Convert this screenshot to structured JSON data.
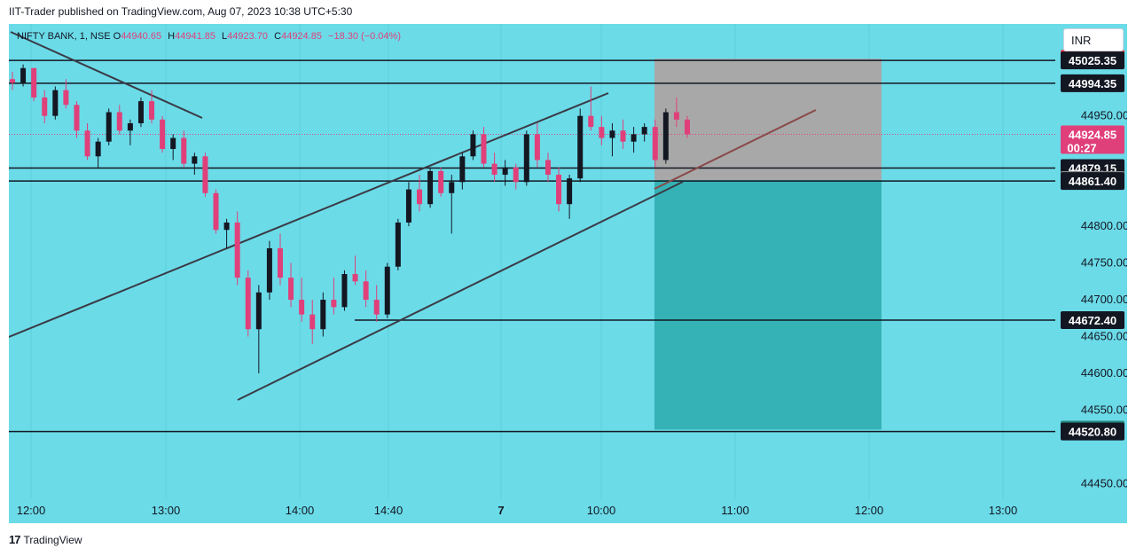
{
  "header": {
    "published": "IIT-Trader published on TradingView.com, Aug 07, 2023 10:38 UTC+5:30"
  },
  "legend": {
    "symbol": "NIFTY BANK, 1, NSE",
    "open_label": "O",
    "open": "44940.65",
    "high_label": "H",
    "high": "44941.85",
    "low_label": "L",
    "low": "44923.70",
    "close_label": "C",
    "close": "44924.85",
    "change": "−18.30 (−0.04%)"
  },
  "currency": "INR",
  "footer": {
    "brand": "TradingView",
    "logo": "17"
  },
  "colors": {
    "background": "#6bdbe8",
    "up": "#131722",
    "down": "#e0407a",
    "stop_zone": "#a8a8a8",
    "target_zone": "#35b2b5"
  },
  "chart_data": {
    "type": "candlestick",
    "ylim": [
      44430,
      45075
    ],
    "y_ticks": [
      44450,
      44500,
      44550,
      44600,
      44650,
      44700,
      44750,
      44800,
      44850,
      44900,
      44950
    ],
    "y_tick_labels": [
      "44450.00",
      "44550.00",
      "44600.00",
      "44650.00",
      "44700.00",
      "44750.00",
      "44800.00",
      "44950.00"
    ],
    "x_ticks": [
      "12:00",
      "13:00",
      "14:00",
      "14:40",
      "7",
      "10:00",
      "11:00",
      "12:00",
      "13:00"
    ],
    "horizontal_levels": [
      45025.35,
      44994.35,
      44879.15,
      44861.4,
      44672.4,
      44520.8
    ],
    "price_tags": [
      {
        "value": "45027.65",
        "color": "#f23645",
        "y": 45027.65
      },
      {
        "value": "45025.35",
        "color": "#131722",
        "y": 45025.35
      },
      {
        "value": "44994.35",
        "color": "#131722",
        "y": 44994.35
      },
      {
        "value": "44924.85",
        "sub": "00:27",
        "color": "#e0407a",
        "y": 44924.85
      },
      {
        "value": "44879.15",
        "color": "#131722",
        "y": 44879.15
      },
      {
        "value": "44862.75",
        "color": "#8c8c8c",
        "y": 44862.75
      },
      {
        "value": "44861.40",
        "color": "#131722",
        "y": 44861.4
      },
      {
        "value": "44672.40",
        "color": "#131722",
        "y": 44672.4
      },
      {
        "value": "44523.50",
        "color": "#23877f",
        "y": 44523.5
      },
      {
        "value": "44520.80",
        "color": "#131722",
        "y": 44520.8
      }
    ],
    "last_price": 44924.85,
    "position": {
      "entry": 44862.75,
      "stop": 45027.65,
      "target": 44523.5
    },
    "candles": [
      [
        45000,
        45010,
        44985,
        44995
      ],
      [
        44995,
        45020,
        44990,
        45015
      ],
      [
        45015,
        45015,
        44970,
        44975
      ],
      [
        44975,
        44985,
        44940,
        44950
      ],
      [
        44950,
        44990,
        44945,
        44985
      ],
      [
        44985,
        45000,
        44960,
        44965
      ],
      [
        44965,
        44970,
        44920,
        44930
      ],
      [
        44930,
        44940,
        44890,
        44895
      ],
      [
        44895,
        44920,
        44880,
        44915
      ],
      [
        44915,
        44960,
        44910,
        44955
      ],
      [
        44955,
        44965,
        44925,
        44930
      ],
      [
        44930,
        44945,
        44910,
        44940
      ],
      [
        44940,
        44975,
        44935,
        44970
      ],
      [
        44970,
        44985,
        44940,
        44945
      ],
      [
        44945,
        44950,
        44900,
        44905
      ],
      [
        44905,
        44925,
        44890,
        44920
      ],
      [
        44920,
        44930,
        44880,
        44885
      ],
      [
        44885,
        44900,
        44870,
        44895
      ],
      [
        44895,
        44900,
        44840,
        44845
      ],
      [
        44845,
        44850,
        44790,
        44795
      ],
      [
        44795,
        44810,
        44770,
        44805
      ],
      [
        44805,
        44820,
        44720,
        44730
      ],
      [
        44730,
        44740,
        44650,
        44660
      ],
      [
        44660,
        44720,
        44600,
        44710
      ],
      [
        44710,
        44780,
        44700,
        44770
      ],
      [
        44770,
        44790,
        44720,
        44730
      ],
      [
        44730,
        44750,
        44690,
        44700
      ],
      [
        44700,
        44730,
        44670,
        44680
      ],
      [
        44680,
        44700,
        44640,
        44660
      ],
      [
        44660,
        44710,
        44650,
        44700
      ],
      [
        44700,
        44730,
        44680,
        44690
      ],
      [
        44690,
        44740,
        44685,
        44735
      ],
      [
        44735,
        44760,
        44720,
        44725
      ],
      [
        44725,
        44740,
        44690,
        44700
      ],
      [
        44700,
        44720,
        44670,
        44680
      ],
      [
        44680,
        44750,
        44675,
        44745
      ],
      [
        44745,
        44810,
        44740,
        44805
      ],
      [
        44805,
        44860,
        44800,
        44850
      ],
      [
        44850,
        44870,
        44820,
        44830
      ],
      [
        44830,
        44880,
        44825,
        44875
      ],
      [
        44875,
        44880,
        44840,
        44845
      ],
      [
        44845,
        44870,
        44790,
        44860
      ],
      [
        44860,
        44900,
        44850,
        44895
      ],
      [
        44895,
        44930,
        44890,
        44925
      ],
      [
        44925,
        44935,
        44880,
        44885
      ],
      [
        44885,
        44900,
        44860,
        44870
      ],
      [
        44870,
        44890,
        44855,
        44880
      ],
      [
        44880,
        44885,
        44850,
        44860
      ],
      [
        44860,
        44930,
        44855,
        44925
      ],
      [
        44925,
        44940,
        44880,
        44890
      ],
      [
        44890,
        44900,
        44860,
        44870
      ],
      [
        44870,
        44880,
        44820,
        44830
      ],
      [
        44830,
        44870,
        44810,
        44865
      ],
      [
        44865,
        44960,
        44860,
        44950
      ],
      [
        44950,
        44990,
        44930,
        44935
      ],
      [
        44935,
        44950,
        44910,
        44920
      ],
      [
        44920,
        44940,
        44895,
        44930
      ],
      [
        44930,
        44945,
        44905,
        44915
      ],
      [
        44915,
        44935,
        44900,
        44925
      ],
      [
        44925,
        44940,
        44915,
        44935
      ],
      [
        44935,
        44945,
        44880,
        44890
      ],
      [
        44890,
        44960,
        44885,
        44955
      ],
      [
        44955,
        44975,
        44935,
        44945
      ],
      [
        44945,
        44950,
        44920,
        44925
      ]
    ]
  }
}
